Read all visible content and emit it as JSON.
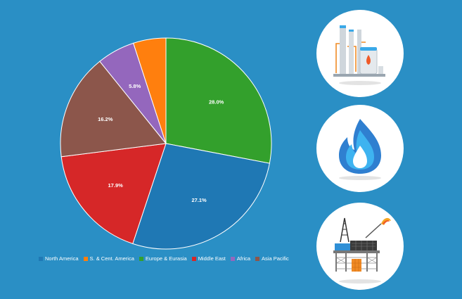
{
  "chart_data": {
    "type": "pie",
    "start_angle_deg": 0,
    "direction": "clockwise",
    "slices": [
      {
        "name": "Europe & Eurasia",
        "value": 28.0,
        "label": "28.0%",
        "color": "#33a02c"
      },
      {
        "name": "North America",
        "value": 27.1,
        "label": "27.1%",
        "color": "#1f78b4"
      },
      {
        "name": "Middle East",
        "value": 17.9,
        "label": "17.9%",
        "color": "#d62728"
      },
      {
        "name": "Asia Pacific",
        "value": 16.2,
        "label": "16.2%",
        "color": "#8c564b"
      },
      {
        "name": "Africa",
        "value": 5.8,
        "label": "5.8%",
        "color": "#9467bd"
      },
      {
        "name": "S. & Cent. America",
        "value": 5.0,
        "label": "",
        "color": "#ff7f0e"
      }
    ],
    "legend": {
      "position": "bottom",
      "items": [
        {
          "name": "North America",
          "color": "#1f78b4"
        },
        {
          "name": "S. & Cent. America",
          "color": "#ff7f0e"
        },
        {
          "name": "Europe & Eurasia",
          "color": "#33a02c"
        },
        {
          "name": "Middle East",
          "color": "#d62728"
        },
        {
          "name": "Africa",
          "color": "#9467bd"
        },
        {
          "name": "Asia Pacific",
          "color": "#8c564b"
        }
      ]
    }
  },
  "icons": [
    "gas-plant-icon",
    "flame-icon",
    "offshore-rig-icon"
  ],
  "colors": {
    "background": "#2a8fc5"
  }
}
